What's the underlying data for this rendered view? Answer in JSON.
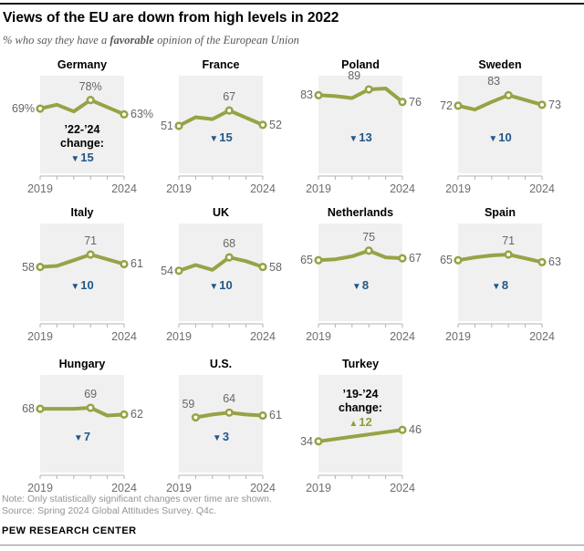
{
  "header": {
    "title": "Views of the EU are down from high levels in 2022",
    "subtitle_prefix": "% who say they have a ",
    "subtitle_bold": "favorable",
    "subtitle_suffix": " opinion of the European Union"
  },
  "footer": {
    "note": "Note: Only statistically significant changes over time are shown.",
    "source": "Source: Spring 2024 Global Attitudes Survey. Q4c.",
    "brand": "PEW RESEARCH CENTER"
  },
  "colors": {
    "line": "#98a246",
    "marker_fill": "#ffffff",
    "down_change": "#21578a",
    "up_change": "#8f9d35",
    "panel_bg": "#f0f0f0",
    "axis": "#b3b3b3",
    "value_label": "#666666",
    "year_label": "#6e6e6e"
  },
  "axis": {
    "start_label": "2019",
    "end_label": "2024"
  },
  "chart_data": {
    "type": "line",
    "x_axis": {
      "start_year": 2019,
      "end_year": 2024,
      "tick_years": [
        2019,
        2020,
        2021,
        2022,
        2023,
        2024
      ],
      "shown_tick_labels": [
        "2019",
        "2024"
      ]
    },
    "ylim": [
      0,
      102
    ],
    "panels": [
      {
        "title": "Germany",
        "years": [
          2019,
          2020,
          2021,
          2022,
          2024
        ],
        "values": [
          69,
          73,
          66,
          78,
          63
        ],
        "marker_years": [
          2019,
          2022,
          2024
        ],
        "labels": {
          "start": "69%",
          "peak": "78%",
          "peak_year": 2022,
          "end": "63%"
        },
        "start_label_position": "left",
        "change": {
          "prefix": [
            "’22-’24",
            "change:"
          ],
          "direction": "down",
          "value": "15",
          "position": "below"
        }
      },
      {
        "title": "France",
        "years": [
          2019,
          2020,
          2021,
          2022,
          2024
        ],
        "values": [
          51,
          60,
          58,
          67,
          52
        ],
        "marker_years": [
          2019,
          2022,
          2024
        ],
        "labels": {
          "start": "51",
          "peak": "67",
          "peak_year": 2022,
          "end": "52"
        },
        "start_label_position": "left",
        "change": {
          "direction": "down",
          "value": "15",
          "position": "below"
        }
      },
      {
        "title": "Poland",
        "years": [
          2019,
          2020,
          2021,
          2022,
          2023,
          2024
        ],
        "values": [
          83,
          82,
          80,
          89,
          90,
          76
        ],
        "marker_years": [
          2019,
          2022,
          2024
        ],
        "labels": {
          "start": "83",
          "peak": "89",
          "peak_year": 2022,
          "end": "76"
        },
        "start_label_position": "left",
        "change": {
          "direction": "down",
          "value": "13",
          "position": "below"
        }
      },
      {
        "title": "Sweden",
        "years": [
          2019,
          2020,
          2021,
          2022,
          2024
        ],
        "values": [
          72,
          68,
          76,
          83,
          73
        ],
        "marker_years": [
          2019,
          2022,
          2024
        ],
        "labels": {
          "start": "72",
          "peak": "83",
          "peak_year": 2022,
          "end": "73"
        },
        "start_label_position": "left",
        "change": {
          "direction": "down",
          "value": "10",
          "position": "below"
        }
      },
      {
        "title": "Italy",
        "years": [
          2019,
          2020,
          2021,
          2022,
          2024
        ],
        "values": [
          58,
          59,
          65,
          71,
          61
        ],
        "marker_years": [
          2019,
          2022,
          2024
        ],
        "labels": {
          "start": "58",
          "peak": "71",
          "peak_year": 2022,
          "end": "61"
        },
        "start_label_position": "left",
        "change": {
          "direction": "down",
          "value": "10",
          "position": "below"
        }
      },
      {
        "title": "UK",
        "years": [
          2019,
          2020,
          2021,
          2022,
          2023,
          2024
        ],
        "values": [
          54,
          60,
          55,
          68,
          64,
          58
        ],
        "marker_years": [
          2019,
          2022,
          2024
        ],
        "labels": {
          "start": "54",
          "peak": "68",
          "peak_year": 2022,
          "end": "58"
        },
        "start_label_position": "left",
        "change": {
          "direction": "down",
          "value": "10",
          "position": "below"
        }
      },
      {
        "title": "Netherlands",
        "years": [
          2019,
          2020,
          2021,
          2022,
          2023,
          2024
        ],
        "values": [
          65,
          66,
          69,
          75,
          68,
          67
        ],
        "marker_years": [
          2019,
          2022,
          2024
        ],
        "labels": {
          "start": "65",
          "peak": "75",
          "peak_year": 2022,
          "end": "67"
        },
        "start_label_position": "left",
        "change": {
          "direction": "down",
          "value": "8",
          "position": "below"
        }
      },
      {
        "title": "Spain",
        "years": [
          2019,
          2020,
          2021,
          2022,
          2024
        ],
        "values": [
          65,
          68,
          70,
          71,
          63
        ],
        "marker_years": [
          2019,
          2022,
          2024
        ],
        "labels": {
          "start": "65",
          "peak": "71",
          "peak_year": 2022,
          "end": "63"
        },
        "start_label_position": "left",
        "change": {
          "direction": "down",
          "value": "8",
          "position": "below"
        }
      },
      {
        "title": "Hungary",
        "years": [
          2019,
          2020,
          2021,
          2022,
          2023,
          2024
        ],
        "values": [
          68,
          68,
          68,
          69,
          61,
          62
        ],
        "marker_years": [
          2019,
          2022,
          2024
        ],
        "labels": {
          "start": "68",
          "peak": "69",
          "peak_year": 2022,
          "end": "62"
        },
        "start_label_position": "left",
        "change": {
          "direction": "down",
          "value": "7",
          "position": "below"
        }
      },
      {
        "title": "U.S.",
        "years": [
          2020,
          2021,
          2022,
          2023,
          2024
        ],
        "values": [
          59,
          62,
          64,
          62,
          61
        ],
        "marker_years": [
          2020,
          2022,
          2024
        ],
        "labels": {
          "start": "59",
          "peak": "64",
          "peak_year": 2022,
          "end": "61"
        },
        "start_label_position": "above",
        "change": {
          "direction": "down",
          "value": "3",
          "position": "below"
        }
      },
      {
        "title": "Turkey",
        "years": [
          2019,
          2024
        ],
        "values": [
          34,
          46
        ],
        "marker_years": [
          2019,
          2024
        ],
        "labels": {
          "start": "34",
          "end": "46"
        },
        "start_label_position": "left",
        "change": {
          "prefix": [
            "’19-’24",
            "change:"
          ],
          "direction": "up",
          "value": "12",
          "position": "above"
        }
      }
    ]
  }
}
